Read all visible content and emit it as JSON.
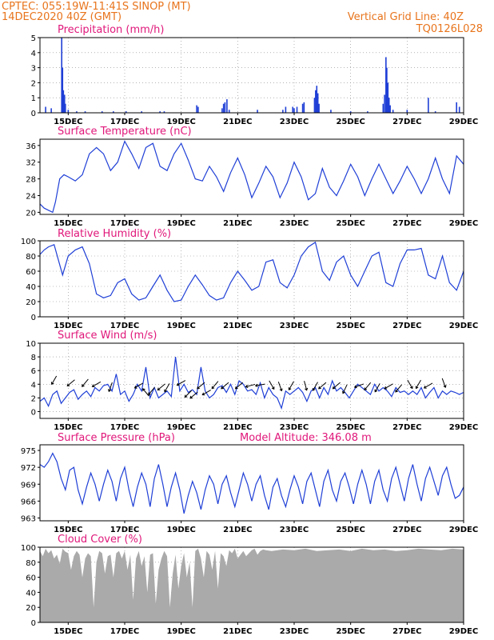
{
  "header": {
    "line1_left": "CPTEC:    055:19W-11:41S   SINOP (MT)",
    "line2_left": "14DEC2020 40Z (GMT)",
    "line1_right": "Vertical Grid Line: 40Z",
    "line2_right": "TQ0126L028"
  },
  "colors": {
    "header": "#e8741c",
    "panel_title": "#e0177a",
    "series": "#1f3fd6",
    "cloud": "#aaaaaa"
  },
  "x_tick_labels": [
    "15DEC",
    "17DEC",
    "19DEC",
    "21DEC",
    "23DEC",
    "25DEC",
    "27DEC",
    "29DEC"
  ],
  "chart_data": [
    {
      "id": "precip",
      "type": "bar",
      "title": "Precipitation (mm/h)",
      "ylim": [
        0,
        5
      ],
      "yticks": [
        0,
        1,
        2,
        3,
        4,
        5
      ],
      "grid": true,
      "x_unit": "days since 14DEC2020 00Z",
      "x_range": [
        0,
        15
      ],
      "points": [
        [
          0.2,
          0.4
        ],
        [
          0.4,
          0.3
        ],
        [
          0.77,
          5.0
        ],
        [
          0.8,
          3.0
        ],
        [
          0.83,
          1.5
        ],
        [
          0.87,
          1.2
        ],
        [
          0.9,
          0.6
        ],
        [
          1.0,
          0.2
        ],
        [
          1.3,
          0.1
        ],
        [
          1.6,
          0.1
        ],
        [
          2.2,
          0.1
        ],
        [
          2.6,
          0.1
        ],
        [
          3.05,
          0.1
        ],
        [
          3.6,
          0.1
        ],
        [
          4.25,
          0.1
        ],
        [
          4.4,
          0.1
        ],
        [
          5.55,
          0.5
        ],
        [
          5.6,
          0.4
        ],
        [
          6.45,
          0.3
        ],
        [
          6.5,
          0.6
        ],
        [
          6.55,
          0.7
        ],
        [
          6.62,
          0.9
        ],
        [
          6.7,
          0.2
        ],
        [
          7.7,
          0.2
        ],
        [
          8.6,
          0.2
        ],
        [
          8.7,
          0.4
        ],
        [
          8.95,
          0.4
        ],
        [
          9.0,
          0.3
        ],
        [
          9.1,
          0.4
        ],
        [
          9.3,
          0.6
        ],
        [
          9.35,
          0.7
        ],
        [
          9.72,
          1.0
        ],
        [
          9.76,
          1.5
        ],
        [
          9.8,
          1.8
        ],
        [
          9.84,
          1.3
        ],
        [
          9.88,
          0.6
        ],
        [
          10.3,
          0.2
        ],
        [
          11.0,
          0.1
        ],
        [
          11.6,
          0.1
        ],
        [
          12.15,
          0.6
        ],
        [
          12.2,
          1.2
        ],
        [
          12.25,
          3.7
        ],
        [
          12.28,
          3.0
        ],
        [
          12.32,
          2.0
        ],
        [
          12.36,
          1.0
        ],
        [
          12.4,
          0.5
        ],
        [
          12.5,
          0.2
        ],
        [
          13.0,
          0.2
        ],
        [
          13.75,
          1.0
        ],
        [
          14.0,
          0.1
        ],
        [
          14.75,
          0.7
        ],
        [
          14.85,
          0.4
        ]
      ]
    },
    {
      "id": "temp",
      "type": "line",
      "title": "Surface Temperature (nC)",
      "ylim": [
        19.5,
        37.5
      ],
      "yticks": [
        20,
        24,
        28,
        32,
        36
      ],
      "grid": false,
      "x": [
        0,
        0.15,
        0.3,
        0.45,
        0.55,
        0.7,
        0.85,
        1.0,
        1.25,
        1.5,
        1.75,
        2.0,
        2.25,
        2.5,
        2.75,
        3.0,
        3.25,
        3.5,
        3.75,
        4.0,
        4.25,
        4.5,
        4.75,
        5.0,
        5.25,
        5.5,
        5.75,
        6.0,
        6.25,
        6.5,
        6.75,
        7.0,
        7.25,
        7.5,
        7.75,
        8.0,
        8.25,
        8.5,
        8.75,
        9.0,
        9.25,
        9.5,
        9.75,
        10.0,
        10.25,
        10.5,
        10.75,
        11.0,
        11.25,
        11.5,
        11.75,
        12.0,
        12.25,
        12.5,
        12.75,
        13.0,
        13.25,
        13.5,
        13.75,
        14.0,
        14.25,
        14.5,
        14.75,
        15.0
      ],
      "values": [
        22.0,
        21.0,
        20.5,
        20.0,
        22.5,
        28.0,
        29.0,
        28.5,
        27.5,
        29.0,
        34.0,
        35.5,
        34.0,
        30.0,
        32.0,
        37.0,
        34.0,
        30.5,
        35.5,
        36.5,
        31.0,
        30.0,
        34.0,
        36.5,
        32.5,
        28.0,
        27.5,
        31.0,
        28.5,
        25.0,
        29.5,
        33.0,
        29.0,
        23.5,
        27.0,
        31.0,
        28.5,
        23.5,
        27.0,
        32.0,
        28.5,
        23.0,
        24.5,
        30.5,
        26.0,
        24.0,
        27.5,
        31.5,
        28.5,
        24.0,
        28.0,
        31.5,
        28.0,
        24.5,
        27.5,
        31.0,
        28.0,
        24.5,
        28.0,
        33.0,
        28.0,
        24.5,
        33.5,
        31.5
      ]
    },
    {
      "id": "rh",
      "type": "line",
      "title": "Relative Humidity (%)",
      "ylim": [
        0,
        100
      ],
      "yticks": [
        0,
        20,
        40,
        60,
        80,
        100
      ],
      "grid": true,
      "x": [
        0,
        0.15,
        0.3,
        0.5,
        0.65,
        0.8,
        1.0,
        1.25,
        1.5,
        1.75,
        2.0,
        2.25,
        2.5,
        2.75,
        3.0,
        3.25,
        3.5,
        3.75,
        4.0,
        4.25,
        4.5,
        4.75,
        5.0,
        5.25,
        5.5,
        5.75,
        6.0,
        6.25,
        6.5,
        6.75,
        7.0,
        7.25,
        7.5,
        7.75,
        8.0,
        8.25,
        8.5,
        8.75,
        9.0,
        9.25,
        9.5,
        9.75,
        10.0,
        10.25,
        10.5,
        10.75,
        11.0,
        11.25,
        11.5,
        11.75,
        12.0,
        12.25,
        12.5,
        12.75,
        13.0,
        13.25,
        13.5,
        13.75,
        14.0,
        14.25,
        14.5,
        14.75,
        15.0
      ],
      "values": [
        82,
        88,
        92,
        95,
        75,
        55,
        80,
        88,
        92,
        70,
        30,
        25,
        28,
        45,
        50,
        30,
        22,
        25,
        40,
        55,
        35,
        20,
        22,
        40,
        55,
        42,
        28,
        22,
        25,
        45,
        60,
        48,
        35,
        40,
        72,
        75,
        45,
        38,
        55,
        80,
        92,
        98,
        60,
        48,
        72,
        80,
        55,
        40,
        60,
        80,
        85,
        45,
        40,
        70,
        88,
        88,
        90,
        55,
        50,
        80,
        45,
        35,
        60
      ]
    },
    {
      "id": "wind",
      "type": "line",
      "title": "Surface Wind (m/s)",
      "ylim": [
        -1,
        10
      ],
      "yticks": [
        0,
        2,
        4,
        6,
        8,
        10
      ],
      "grid": true,
      "x": [
        0,
        0.15,
        0.3,
        0.45,
        0.6,
        0.75,
        0.9,
        1.05,
        1.2,
        1.35,
        1.5,
        1.65,
        1.8,
        1.95,
        2.1,
        2.25,
        2.4,
        2.55,
        2.7,
        2.85,
        3.0,
        3.15,
        3.3,
        3.45,
        3.6,
        3.75,
        3.9,
        4.05,
        4.2,
        4.35,
        4.5,
        4.65,
        4.8,
        4.95,
        5.1,
        5.25,
        5.4,
        5.55,
        5.7,
        5.85,
        6.0,
        6.15,
        6.3,
        6.45,
        6.6,
        6.75,
        6.9,
        7.05,
        7.2,
        7.35,
        7.5,
        7.65,
        7.8,
        7.95,
        8.1,
        8.25,
        8.4,
        8.55,
        8.7,
        8.85,
        9.0,
        9.15,
        9.3,
        9.45,
        9.6,
        9.75,
        9.9,
        10.05,
        10.2,
        10.35,
        10.5,
        10.65,
        10.8,
        10.95,
        11.1,
        11.25,
        11.4,
        11.55,
        11.7,
        11.85,
        12.0,
        12.15,
        12.3,
        12.45,
        12.6,
        12.75,
        12.9,
        13.05,
        13.2,
        13.35,
        13.5,
        13.65,
        13.8,
        13.95,
        14.1,
        14.25,
        14.4,
        14.55,
        14.7,
        14.85,
        15.0
      ],
      "values": [
        1.5,
        2.0,
        0.8,
        2.5,
        3.0,
        1.2,
        2.0,
        2.8,
        3.2,
        1.8,
        2.5,
        3.0,
        2.2,
        3.5,
        3.0,
        3.8,
        4.0,
        3.0,
        5.5,
        2.5,
        3.0,
        1.5,
        2.5,
        4.0,
        3.0,
        6.5,
        2.0,
        3.5,
        2.0,
        2.5,
        3.0,
        2.2,
        8.0,
        3.0,
        4.0,
        2.8,
        3.2,
        2.5,
        6.5,
        3.0,
        2.0,
        2.5,
        3.5,
        3.8,
        2.8,
        4.0,
        2.5,
        4.5,
        4.0,
        3.0,
        3.2,
        2.5,
        4.2,
        2.0,
        3.5,
        2.5,
        2.0,
        0.5,
        3.0,
        2.5,
        3.0,
        3.5,
        2.8,
        1.5,
        3.0,
        3.5,
        2.0,
        3.5,
        2.5,
        4.5,
        3.0,
        3.5,
        2.8,
        2.0,
        3.0,
        4.0,
        3.5,
        3.0,
        2.5,
        4.0,
        3.0,
        3.5,
        3.0,
        2.2,
        3.5,
        2.8,
        3.0,
        2.5,
        3.0,
        2.5,
        3.5,
        2.0,
        2.8,
        3.5,
        2.0,
        3.0,
        2.5,
        3.0,
        2.8,
        2.5,
        2.8
      ],
      "arrows": [
        [
          0.5,
          4.6,
          120
        ],
        [
          1.1,
          4.2,
          140
        ],
        [
          1.6,
          4.2,
          130
        ],
        [
          2.0,
          4.0,
          150
        ],
        [
          2.5,
          3.6,
          110
        ],
        [
          3.5,
          3.8,
          150
        ],
        [
          3.75,
          2.8,
          230
        ],
        [
          3.95,
          3.0,
          130
        ],
        [
          4.3,
          3.6,
          140
        ],
        [
          4.5,
          3.5,
          120
        ],
        [
          5.0,
          4.2,
          150
        ],
        [
          5.25,
          2.6,
          135
        ],
        [
          5.45,
          2.4,
          140
        ],
        [
          5.7,
          3.8,
          140
        ],
        [
          5.9,
          2.8,
          150
        ],
        [
          6.2,
          3.9,
          130
        ],
        [
          6.55,
          3.8,
          140
        ],
        [
          7.05,
          3.8,
          140
        ],
        [
          7.45,
          3.8,
          165
        ],
        [
          7.8,
          3.9,
          170
        ],
        [
          8.2,
          3.9,
          60
        ],
        [
          8.5,
          3.7,
          70
        ],
        [
          8.9,
          3.8,
          120
        ],
        [
          9.4,
          3.8,
          75
        ],
        [
          9.75,
          3.7,
          120
        ],
        [
          10.0,
          3.8,
          140
        ],
        [
          10.5,
          3.8,
          140
        ],
        [
          10.8,
          3.3,
          115
        ],
        [
          11.3,
          3.8,
          160
        ],
        [
          11.6,
          3.7,
          130
        ],
        [
          11.95,
          3.5,
          120
        ],
        [
          12.35,
          3.7,
          150
        ],
        [
          12.7,
          3.4,
          130
        ],
        [
          13.1,
          4.0,
          60
        ],
        [
          13.4,
          4.0,
          120
        ],
        [
          13.75,
          3.8,
          150
        ],
        [
          14.3,
          4.2,
          70
        ]
      ]
    },
    {
      "id": "psfc",
      "type": "line",
      "title": "Surface Pressure (hPa)",
      "annotation": "Model Altitude: 346.08 m",
      "ylim": [
        962.5,
        976.0
      ],
      "yticks": [
        963,
        966,
        969,
        972,
        975
      ],
      "grid": false,
      "x": [
        0,
        0.15,
        0.3,
        0.45,
        0.6,
        0.75,
        0.9,
        1.05,
        1.2,
        1.35,
        1.5,
        1.65,
        1.8,
        1.95,
        2.1,
        2.25,
        2.4,
        2.55,
        2.7,
        2.85,
        3.0,
        3.15,
        3.3,
        3.45,
        3.6,
        3.75,
        3.9,
        4.05,
        4.2,
        4.35,
        4.5,
        4.65,
        4.8,
        4.95,
        5.1,
        5.25,
        5.4,
        5.55,
        5.7,
        5.85,
        6.0,
        6.15,
        6.3,
        6.45,
        6.6,
        6.75,
        6.9,
        7.05,
        7.2,
        7.35,
        7.5,
        7.65,
        7.8,
        7.95,
        8.1,
        8.25,
        8.4,
        8.55,
        8.7,
        8.85,
        9.0,
        9.15,
        9.3,
        9.45,
        9.6,
        9.75,
        9.9,
        10.05,
        10.2,
        10.35,
        10.5,
        10.65,
        10.8,
        10.95,
        11.1,
        11.25,
        11.4,
        11.55,
        11.7,
        11.85,
        12.0,
        12.15,
        12.3,
        12.45,
        12.6,
        12.75,
        12.9,
        13.05,
        13.2,
        13.35,
        13.5,
        13.65,
        13.8,
        13.95,
        14.1,
        14.25,
        14.4,
        14.55,
        14.7,
        14.85,
        15.0
      ],
      "values": [
        972.5,
        972.0,
        973.0,
        974.5,
        973.0,
        970.0,
        968.0,
        971.5,
        972.0,
        968.0,
        965.5,
        968.5,
        971.0,
        969.0,
        966.0,
        969.0,
        971.5,
        969.5,
        966.0,
        970.0,
        972.0,
        968.0,
        965.0,
        968.5,
        971.0,
        969.0,
        965.0,
        970.0,
        972.5,
        969.0,
        965.0,
        968.5,
        971.0,
        968.0,
        963.8,
        967.0,
        969.5,
        967.5,
        964.5,
        968.0,
        970.5,
        969.0,
        965.5,
        969.0,
        970.5,
        967.5,
        965.0,
        968.0,
        971.0,
        969.0,
        966.0,
        969.0,
        970.5,
        967.0,
        964.5,
        968.5,
        970.0,
        967.0,
        965.0,
        968.0,
        970.5,
        968.5,
        965.5,
        969.5,
        971.0,
        968.0,
        965.0,
        969.5,
        971.5,
        968.0,
        966.0,
        969.5,
        971.0,
        968.5,
        965.5,
        969.0,
        971.5,
        969.0,
        965.5,
        969.5,
        971.5,
        968.0,
        966.0,
        970.0,
        972.0,
        969.0,
        966.0,
        970.0,
        972.5,
        969.0,
        966.0,
        970.0,
        972.0,
        969.5,
        967.0,
        970.5,
        972.0,
        969.0,
        966.5,
        967.0,
        968.5
      ]
    },
    {
      "id": "cloud",
      "type": "area",
      "title": "Cloud Cover (%)",
      "ylim": [
        0,
        100
      ],
      "yticks": [
        0,
        20,
        40,
        60,
        80,
        100
      ],
      "grid": true,
      "x": [
        0,
        0.1,
        0.2,
        0.3,
        0.4,
        0.5,
        0.6,
        0.7,
        0.8,
        0.9,
        1.0,
        1.1,
        1.2,
        1.3,
        1.4,
        1.5,
        1.6,
        1.7,
        1.8,
        1.9,
        2.0,
        2.1,
        2.2,
        2.3,
        2.4,
        2.5,
        2.6,
        2.7,
        2.8,
        2.9,
        3.0,
        3.1,
        3.2,
        3.3,
        3.4,
        3.5,
        3.6,
        3.7,
        3.8,
        3.9,
        4.0,
        4.1,
        4.2,
        4.3,
        4.4,
        4.5,
        4.6,
        4.7,
        4.8,
        4.9,
        5.0,
        5.1,
        5.2,
        5.3,
        5.4,
        5.5,
        5.6,
        5.7,
        5.8,
        5.9,
        6.0,
        6.1,
        6.2,
        6.3,
        6.4,
        6.5,
        6.6,
        6.7,
        6.8,
        6.9,
        7.0,
        7.1,
        7.2,
        7.3,
        7.4,
        7.5,
        7.6,
        7.7,
        7.8,
        7.9,
        8.0,
        8.2,
        8.6,
        9.0,
        9.4,
        9.8,
        10.2,
        10.6,
        11.0,
        11.4,
        11.8,
        12.2,
        12.6,
        13.0,
        13.4,
        13.8,
        14.2,
        14.6,
        15.0
      ],
      "values": [
        95,
        88,
        98,
        92,
        96,
        85,
        90,
        78,
        98,
        94,
        92,
        70,
        88,
        95,
        90,
        60,
        85,
        92,
        88,
        20,
        80,
        95,
        92,
        65,
        88,
        90,
        60,
        92,
        95,
        85,
        95,
        70,
        90,
        30,
        85,
        95,
        75,
        88,
        40,
        90,
        92,
        25,
        70,
        85,
        95,
        88,
        20,
        65,
        90,
        45,
        75,
        92,
        60,
        80,
        20,
        95,
        98,
        85,
        60,
        95,
        90,
        70,
        95,
        45,
        92,
        88,
        75,
        96,
        92,
        98,
        85,
        90,
        95,
        88,
        92,
        96,
        98,
        90,
        95,
        97,
        96,
        95,
        97,
        96,
        98,
        95,
        96,
        97,
        95,
        98,
        96,
        97,
        95,
        96,
        98,
        97,
        96,
        98,
        97
      ]
    }
  ]
}
